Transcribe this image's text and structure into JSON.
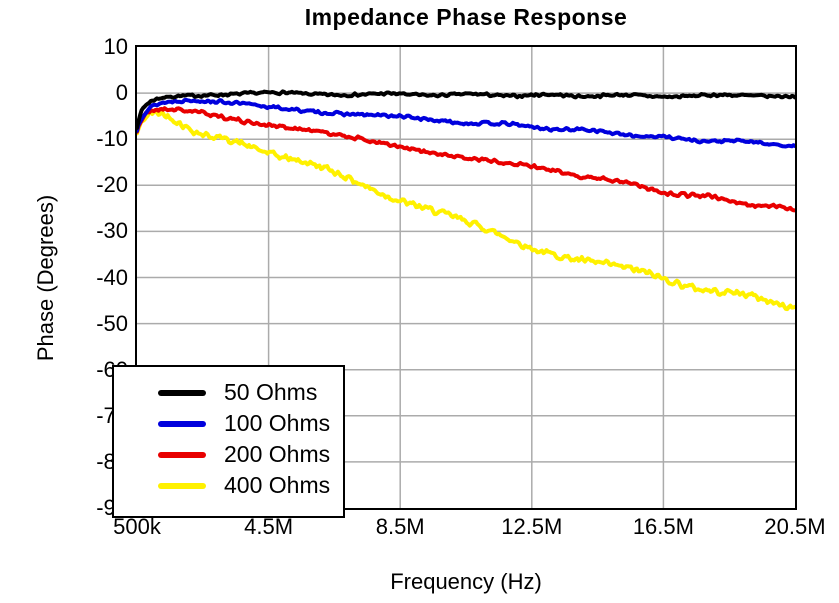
{
  "chart_data": {
    "type": "line",
    "title": "Impedance Phase Response",
    "xlabel": "Frequency (Hz)",
    "ylabel": "Phase (Degrees)",
    "x_unit": "MHz",
    "xlim": [
      0.5,
      20.5
    ],
    "ylim": [
      -90,
      10
    ],
    "grid": true,
    "legend_position": "bottom-left",
    "x_tick_positions": [
      0.5,
      4.5,
      8.5,
      12.5,
      16.5,
      20.5
    ],
    "x_tick_labels": [
      "500k",
      "4.5M",
      "8.5M",
      "12.5M",
      "16.5M",
      "20.5M"
    ],
    "y_tick_positions": [
      10,
      0,
      -10,
      -20,
      -30,
      -40,
      -50,
      -60,
      -70,
      -80,
      -90
    ],
    "y_tick_labels": [
      "10",
      "0",
      "-10",
      "-20",
      "-30",
      "-40",
      "-50",
      "-60",
      "-70",
      "-80",
      "-90"
    ],
    "x": [
      0.5,
      0.55,
      0.62,
      0.7,
      0.8,
      0.9,
      1,
      1.2,
      1.4,
      1.7,
      2,
      2.5,
      3,
      3.5,
      4,
      4.5,
      5,
      5.5,
      6,
      7,
      7.5,
      8.5,
      9.5,
      10.5,
      11.5,
      12.5,
      13.5,
      14.5,
      15.5,
      16.5,
      17.5,
      18.5,
      19.5,
      20.5
    ],
    "series": [
      {
        "name": "50 Ohms",
        "color": "#000000",
        "noise": 0.35,
        "seed": 7,
        "values": [
          -7.5,
          -5.8,
          -4.3,
          -3.2,
          -2.4,
          -1.9,
          -1.5,
          -1,
          -0.8,
          -0.5,
          -0.4,
          -0.3,
          -0.2,
          -0.2,
          -0.1,
          -0.1,
          -0.1,
          -0.2,
          -0.2,
          -0.2,
          -0.3,
          -0.3,
          -0.3,
          -0.4,
          -0.4,
          -0.5,
          -0.5,
          -0.5,
          -0.6,
          -0.6,
          -0.6,
          -0.6,
          -0.5,
          -0.5
        ]
      },
      {
        "name": "100 Ohms",
        "color": "#0000DD",
        "noise": 0.4,
        "seed": 13,
        "values": [
          -8,
          -6.5,
          -5.3,
          -4.3,
          -3.5,
          -2.9,
          -2.5,
          -2,
          -1.8,
          -1.6,
          -1.6,
          -1.8,
          -2.1,
          -2.4,
          -2.7,
          -3,
          -3.3,
          -3.6,
          -3.9,
          -4.5,
          -4.8,
          -5.3,
          -5.8,
          -6.3,
          -6.8,
          -7.3,
          -7.8,
          -8.3,
          -9,
          -9.7,
          -10.1,
          -10.5,
          -10.9,
          -11.2
        ]
      },
      {
        "name": "200 Ohms",
        "color": "#E80000",
        "noise": 0.5,
        "seed": 21,
        "values": [
          -8.3,
          -7,
          -5.9,
          -5,
          -4.2,
          -3.7,
          -3.4,
          -3.2,
          -3.2,
          -3.5,
          -3.9,
          -4.6,
          -5.2,
          -5.8,
          -6.2,
          -6.6,
          -7.2,
          -7.8,
          -8.5,
          -9.8,
          -10.5,
          -11.7,
          -12.8,
          -13.9,
          -15,
          -16.1,
          -17.2,
          -18.3,
          -19.8,
          -21.3,
          -22.3,
          -23.3,
          -24.4,
          -25.5
        ]
      },
      {
        "name": "400 Ohms",
        "color": "#FFF100",
        "noise": 0.8,
        "seed": 42,
        "values": [
          -8.8,
          -7.8,
          -6.8,
          -6,
          -5.3,
          -4.9,
          -4.7,
          -4.8,
          -5.2,
          -6,
          -7,
          -8.6,
          -9.9,
          -11,
          -11.9,
          -12.6,
          -13.6,
          -14.8,
          -16.2,
          -18.8,
          -20.1,
          -23,
          -25.6,
          -28.2,
          -30.9,
          -33.5,
          -35.1,
          -36.7,
          -38.5,
          -40.4,
          -41.9,
          -43.4,
          -44.8,
          -46.2
        ]
      }
    ],
    "colors": {
      "grid": "#ABABAB",
      "axis": "#000000",
      "background": "#FFFFFF"
    }
  }
}
